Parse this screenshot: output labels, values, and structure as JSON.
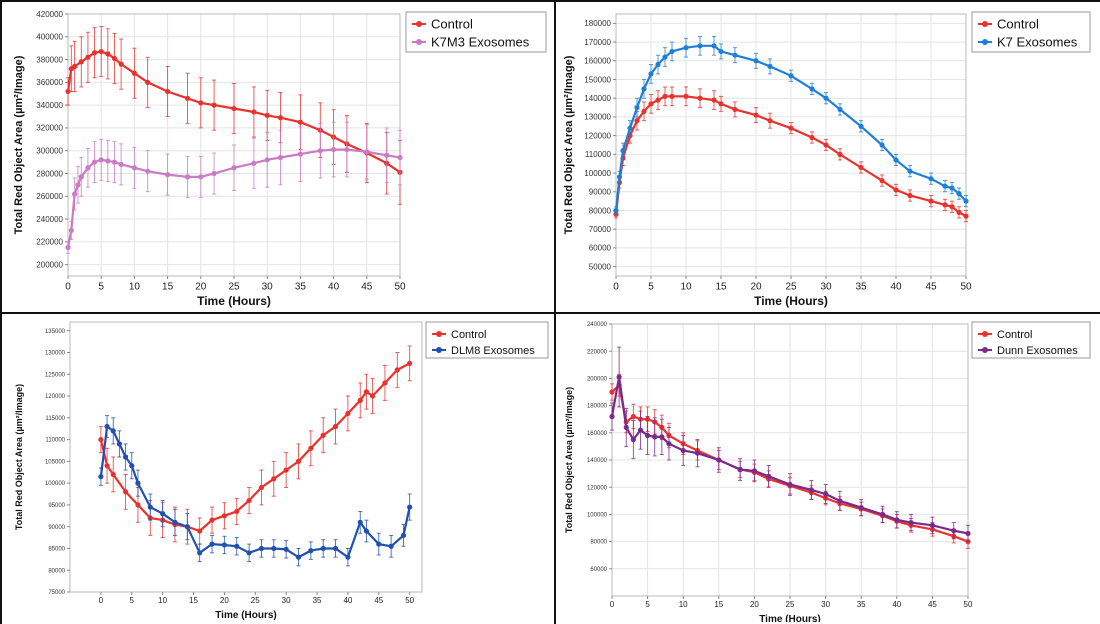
{
  "chart_data": [
    {
      "type": "line",
      "xlabel": "Time (Hours)",
      "ylabel": "Total Red Object Area (µm²/Image)",
      "xlim": [
        0,
        50
      ],
      "ylim": [
        190000,
        420000
      ],
      "xticks": [
        0,
        5,
        10,
        15,
        20,
        25,
        30,
        35,
        40,
        45,
        50
      ],
      "yticks": [
        200000,
        220000,
        240000,
        260000,
        280000,
        300000,
        320000,
        340000,
        360000,
        380000,
        400000,
        420000
      ],
      "legend_position": "top-right",
      "grid": true,
      "series": [
        {
          "name": "Control",
          "color": "#e8322d",
          "x": [
            0,
            0.5,
            1,
            2,
            3,
            4,
            5,
            6,
            7,
            8,
            10,
            12,
            15,
            18,
            20,
            22,
            25,
            28,
            30,
            32,
            35,
            38,
            40,
            42,
            45,
            48,
            50
          ],
          "y": [
            352000,
            372000,
            374000,
            378000,
            382000,
            386000,
            387000,
            385000,
            381000,
            376000,
            368000,
            360000,
            352000,
            346000,
            342000,
            340000,
            337000,
            334000,
            331000,
            329000,
            325000,
            318000,
            312000,
            306000,
            298000,
            289000,
            281000
          ],
          "err": [
            12000,
            20000,
            22000,
            22000,
            22000,
            22000,
            22000,
            22000,
            22000,
            22000,
            22000,
            22000,
            22000,
            22000,
            22000,
            22000,
            22000,
            22000,
            22000,
            22000,
            24000,
            24000,
            24000,
            25000,
            26000,
            27000,
            28000
          ]
        },
        {
          "name": "K7M3 Exosomes",
          "color": "#c97bc6",
          "x": [
            0,
            0.5,
            1,
            1.5,
            2,
            3,
            4,
            5,
            6,
            7,
            8,
            10,
            12,
            15,
            18,
            20,
            22,
            25,
            28,
            30,
            32,
            35,
            38,
            40,
            42,
            45,
            48,
            50
          ],
          "y": [
            215000,
            230000,
            262000,
            270000,
            277000,
            285000,
            290000,
            292000,
            291000,
            290000,
            288000,
            285000,
            282000,
            279000,
            277000,
            277000,
            280000,
            285000,
            289000,
            292000,
            294000,
            297000,
            300000,
            301000,
            301000,
            299000,
            296000,
            294000
          ],
          "err": [
            5000,
            8000,
            14000,
            16000,
            17000,
            17000,
            18000,
            18000,
            18000,
            18000,
            18000,
            18000,
            18000,
            18000,
            18000,
            18000,
            18000,
            20000,
            22000,
            24000,
            24000,
            24000,
            24000,
            24000,
            24000,
            24000,
            24000,
            24000
          ]
        }
      ]
    },
    {
      "type": "line",
      "xlabel": "Time (Hours)",
      "ylabel": "Total Red Object Area (µm²/Image)",
      "xlim": [
        0,
        50
      ],
      "ylim": [
        45000,
        185000
      ],
      "xticks": [
        0,
        5,
        10,
        15,
        20,
        25,
        30,
        35,
        40,
        45,
        50
      ],
      "yticks": [
        50000,
        60000,
        70000,
        80000,
        90000,
        100000,
        110000,
        120000,
        130000,
        140000,
        150000,
        160000,
        170000,
        180000
      ],
      "legend_position": "top-right",
      "grid": true,
      "series": [
        {
          "name": "Control",
          "color": "#e8322d",
          "x": [
            0,
            0.5,
            1,
            2,
            3,
            4,
            5,
            6,
            7,
            8,
            10,
            12,
            14,
            15,
            17,
            20,
            22,
            25,
            28,
            30,
            32,
            35,
            38,
            40,
            42,
            45,
            47,
            48,
            49,
            50
          ],
          "y": [
            78000,
            95000,
            108000,
            120000,
            128000,
            133000,
            137000,
            139000,
            141000,
            141000,
            141000,
            140000,
            139000,
            137000,
            134000,
            131000,
            128000,
            124000,
            119000,
            115000,
            110000,
            103000,
            96000,
            91000,
            88000,
            85000,
            83000,
            82000,
            79000,
            77000
          ],
          "err": [
            2000,
            3000,
            4000,
            4000,
            5000,
            5000,
            5000,
            5000,
            5000,
            5000,
            5000,
            5000,
            5000,
            4000,
            4000,
            4000,
            4000,
            3000,
            3000,
            3000,
            3000,
            3000,
            3000,
            3000,
            3000,
            3000,
            3000,
            3000,
            3000,
            3000
          ]
        },
        {
          "name": "K7 Exosomes",
          "color": "#1f7fd6",
          "x": [
            0,
            0.5,
            1,
            2,
            3,
            4,
            5,
            6,
            7,
            8,
            10,
            12,
            14,
            15,
            17,
            20,
            22,
            25,
            28,
            30,
            32,
            35,
            38,
            40,
            42,
            45,
            47,
            48,
            49,
            50
          ],
          "y": [
            80000,
            98000,
            112000,
            124000,
            135000,
            145000,
            153000,
            158000,
            162000,
            165000,
            167000,
            168000,
            168000,
            165000,
            163000,
            160000,
            157000,
            152000,
            145000,
            140000,
            134000,
            125000,
            115000,
            107000,
            101000,
            97000,
            93000,
            92000,
            89000,
            85000
          ],
          "err": [
            2000,
            3000,
            4000,
            4000,
            5000,
            5000,
            5000,
            5000,
            5000,
            5000,
            5000,
            5000,
            5000,
            4000,
            4000,
            4000,
            4000,
            3000,
            3000,
            3000,
            3000,
            3000,
            3000,
            3000,
            3000,
            3000,
            3000,
            3000,
            3000,
            3000
          ]
        }
      ]
    },
    {
      "type": "line",
      "xlabel": "Time (Hours)",
      "ylabel": "Total Red Object Area (µm²/Image)",
      "xlim": [
        -5,
        52
      ],
      "ylim": [
        75000,
        137000
      ],
      "xticks": [
        0,
        5,
        10,
        15,
        20,
        25,
        30,
        35,
        40,
        45,
        50
      ],
      "yticks": [
        75000,
        80000,
        85000,
        90000,
        95000,
        100000,
        105000,
        110000,
        115000,
        120000,
        125000,
        130000,
        135000
      ],
      "legend_position": "top-right",
      "grid": false,
      "series": [
        {
          "name": "Control",
          "color": "#e8322d",
          "x": [
            0,
            1,
            2,
            4,
            6,
            8,
            10,
            12,
            14,
            16,
            18,
            20,
            22,
            24,
            26,
            28,
            30,
            32,
            34,
            36,
            38,
            40,
            42,
            43,
            44,
            46,
            48,
            50
          ],
          "y": [
            110000,
            104000,
            102000,
            98000,
            95000,
            92000,
            91500,
            90500,
            90000,
            89000,
            91500,
            92500,
            93500,
            96000,
            99000,
            101000,
            103000,
            105000,
            108000,
            111000,
            113000,
            116000,
            119000,
            121000,
            120000,
            123000,
            126000,
            127500
          ],
          "err": [
            3000,
            4000,
            4000,
            4000,
            4000,
            4000,
            4000,
            4000,
            4000,
            3000,
            3000,
            3000,
            3000,
            3000,
            4000,
            4000,
            4000,
            4000,
            4000,
            4000,
            4000,
            4000,
            4000,
            4000,
            4000,
            4000,
            4000,
            4000
          ]
        },
        {
          "name": "DLM8 Exosomes",
          "color": "#2050b0",
          "x": [
            0,
            1,
            2,
            3,
            4,
            5,
            6,
            8,
            10,
            12,
            14,
            16,
            18,
            20,
            22,
            24,
            26,
            28,
            30,
            32,
            34,
            36,
            38,
            40,
            42,
            43,
            45,
            47,
            49,
            50
          ],
          "y": [
            101500,
            113000,
            112000,
            109000,
            106000,
            104000,
            100000,
            94500,
            93000,
            91000,
            90000,
            84000,
            86000,
            85800,
            85500,
            84000,
            85000,
            85000,
            84800,
            83000,
            84500,
            85000,
            85000,
            83000,
            91000,
            89000,
            86000,
            85500,
            88000,
            94500
          ],
          "err": [
            2000,
            2500,
            3000,
            3000,
            3000,
            3000,
            3000,
            3000,
            3000,
            3000,
            3000,
            2000,
            2000,
            2000,
            2000,
            2000,
            2000,
            2000,
            2000,
            2000,
            2000,
            2000,
            2000,
            2000,
            2500,
            2500,
            2500,
            2500,
            2500,
            3000
          ]
        }
      ]
    },
    {
      "type": "line",
      "xlabel": "Time (Hours)",
      "ylabel": "Total Red Object Area (µm²/Image)",
      "xlim": [
        0,
        50
      ],
      "ylim": [
        40000,
        240000
      ],
      "xticks": [
        0,
        5,
        10,
        15,
        20,
        25,
        30,
        35,
        40,
        45,
        50
      ],
      "yticks": [
        60000,
        80000,
        100000,
        120000,
        140000,
        160000,
        180000,
        200000,
        220000,
        240000
      ],
      "legend_position": "top-right",
      "grid": true,
      "series": [
        {
          "name": "Control",
          "color": "#e8322d",
          "x": [
            0,
            1,
            2,
            3,
            4,
            5,
            6,
            7,
            8,
            10,
            12,
            15,
            18,
            20,
            22,
            25,
            28,
            30,
            32,
            35,
            38,
            40,
            42,
            45,
            48,
            50
          ],
          "y": [
            190000,
            195000,
            168000,
            172000,
            170000,
            170000,
            168000,
            164000,
            158000,
            152000,
            147000,
            140000,
            133000,
            131000,
            126000,
            121000,
            116000,
            112000,
            108000,
            104000,
            99000,
            95000,
            92000,
            89000,
            84000,
            80000
          ],
          "err": [
            6000,
            8000,
            8000,
            9000,
            9000,
            9000,
            9000,
            9000,
            9000,
            8000,
            7000,
            7000,
            6000,
            6000,
            6000,
            6000,
            5000,
            5000,
            5000,
            5000,
            5000,
            5000,
            5000,
            5000,
            5000,
            5000
          ]
        },
        {
          "name": "Dunn Exosomes",
          "color": "#7a2a8c",
          "x": [
            0,
            1,
            2,
            3,
            4,
            5,
            6,
            7,
            8,
            10,
            12,
            15,
            18,
            20,
            22,
            25,
            28,
            30,
            32,
            35,
            38,
            40,
            42,
            45,
            48,
            50
          ],
          "y": [
            172000,
            201000,
            164000,
            155000,
            162000,
            158000,
            157000,
            157000,
            152000,
            147000,
            145000,
            140000,
            133000,
            132000,
            128000,
            122000,
            118000,
            115000,
            110000,
            105000,
            100000,
            96000,
            94000,
            92000,
            88000,
            86000
          ],
          "err": [
            10000,
            22000,
            14000,
            14000,
            14000,
            14000,
            14000,
            13000,
            12000,
            11000,
            10000,
            9000,
            8000,
            8000,
            8000,
            8000,
            7000,
            7000,
            7000,
            6000,
            6000,
            6000,
            6000,
            6000,
            6000,
            6000
          ]
        }
      ]
    }
  ]
}
